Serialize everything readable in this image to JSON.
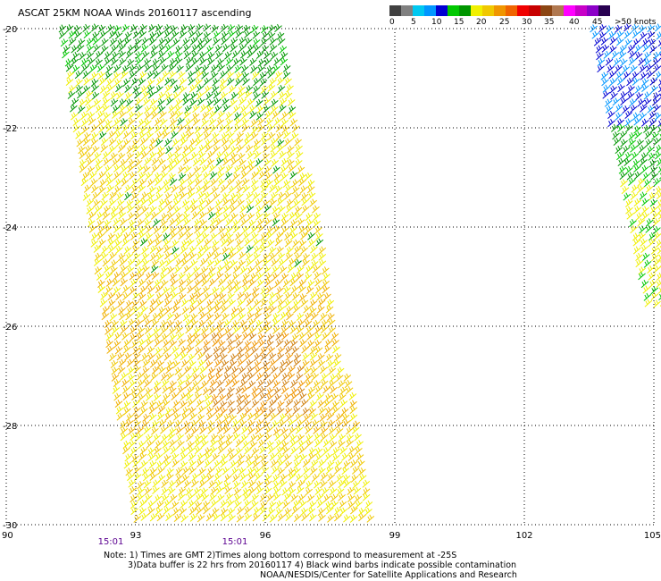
{
  "title": "ASCAT 25KM NOAA Winds 20160117 ascending",
  "legend": {
    "colors": [
      "#404040",
      "#808080",
      "#00c8f0",
      "#0096ff",
      "#0000d2",
      "#00c800",
      "#009600",
      "#f0f000",
      "#f0c800",
      "#f09600",
      "#f06400",
      "#f00000",
      "#c80000",
      "#8b4513",
      "#b07850",
      "#ff00ff",
      "#c800c8",
      "#8c00c8",
      "#280050"
    ],
    "labels": [
      "0",
      "5",
      "10",
      "15",
      "20",
      "25",
      "30",
      "35",
      "40",
      "45",
      ">50 knots"
    ]
  },
  "axes": {
    "lat_labels": [
      "-20",
      "-22",
      "-24",
      "-26",
      "-28",
      "-30"
    ],
    "lon_labels": [
      "90",
      "93",
      "96",
      "99",
      "102",
      "105"
    ]
  },
  "times": [
    "15:01",
    "15:01"
  ],
  "notes": {
    "line1": "Note: 1) Times are GMT 2)Times along bottom correspond to measurement at -25S",
    "line2": "3)Data buffer is 22 hrs from 20160117 4) Black wind barbs indicate possible contamination",
    "line3": "NOAA/NESDIS/Center for Satellite Applications and Research"
  }
}
